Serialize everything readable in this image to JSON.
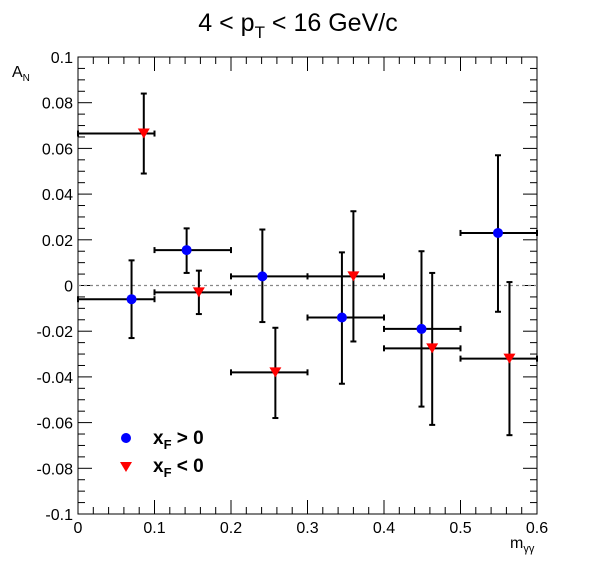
{
  "chart_data": {
    "type": "scatter",
    "title": {
      "base": "4 < p",
      "sub": "T",
      "rest": " < 16 GeV/c"
    },
    "xlabel": {
      "base": "m",
      "sub": "γγ"
    },
    "ylabel": {
      "base": "A",
      "sub": "N"
    },
    "xlim": [
      0,
      0.6
    ],
    "ylim": [
      -0.1,
      0.1
    ],
    "x_ticks": [
      "0",
      "0.1",
      "0.2",
      "0.3",
      "0.4",
      "0.5",
      "0.6"
    ],
    "y_ticks": [
      "-0.1",
      "-0.08",
      "-0.06",
      "-0.04",
      "-0.02",
      "0",
      "0.02",
      "0.04",
      "0.06",
      "0.08",
      "0.1"
    ],
    "reference_line": {
      "y": 0,
      "style": "dashed",
      "color": "#888888"
    },
    "grid": false,
    "legend_position": "bottom-left",
    "series": [
      {
        "legend": {
          "base": "x",
          "sub": "F",
          "rest": " > 0"
        },
        "marker": "circle",
        "color": "#0000ff",
        "points": [
          {
            "x": 0.07,
            "y": -0.006,
            "xlo": 0.0,
            "xhi": 0.1,
            "ylo": -0.023,
            "yhi": 0.011
          },
          {
            "x": 0.142,
            "y": 0.0155,
            "xlo": 0.1,
            "xhi": 0.2,
            "ylo": 0.0055,
            "yhi": 0.025
          },
          {
            "x": 0.241,
            "y": 0.004,
            "xlo": 0.2,
            "xhi": 0.3,
            "ylo": -0.016,
            "yhi": 0.0245
          },
          {
            "x": 0.345,
            "y": -0.014,
            "xlo": 0.3,
            "xhi": 0.4,
            "ylo": -0.043,
            "yhi": 0.0145
          },
          {
            "x": 0.449,
            "y": -0.019,
            "xlo": 0.4,
            "xhi": 0.5,
            "ylo": -0.053,
            "yhi": 0.015
          },
          {
            "x": 0.549,
            "y": 0.023,
            "xlo": 0.5,
            "xhi": 0.6,
            "ylo": -0.0115,
            "yhi": 0.057
          }
        ]
      },
      {
        "legend": {
          "base": "x",
          "sub": "F",
          "rest": " < 0"
        },
        "marker": "triangle-down",
        "color": "#ff0000",
        "points": [
          {
            "x": 0.086,
            "y": 0.0665,
            "xlo": 0.0,
            "xhi": 0.1,
            "ylo": 0.049,
            "yhi": 0.084
          },
          {
            "x": 0.158,
            "y": -0.003,
            "xlo": 0.1,
            "xhi": 0.2,
            "ylo": -0.0125,
            "yhi": 0.0065
          },
          {
            "x": 0.258,
            "y": -0.038,
            "xlo": 0.2,
            "xhi": 0.3,
            "ylo": -0.058,
            "yhi": -0.0185
          },
          {
            "x": 0.36,
            "y": 0.004,
            "xlo": 0.3,
            "xhi": 0.4,
            "ylo": -0.0245,
            "yhi": 0.0325
          },
          {
            "x": 0.463,
            "y": -0.0275,
            "xlo": 0.4,
            "xhi": 0.5,
            "ylo": -0.061,
            "yhi": 0.0055
          },
          {
            "x": 0.564,
            "y": -0.032,
            "xlo": 0.5,
            "xhi": 0.6,
            "ylo": -0.0655,
            "yhi": 0.0015
          }
        ]
      }
    ]
  }
}
